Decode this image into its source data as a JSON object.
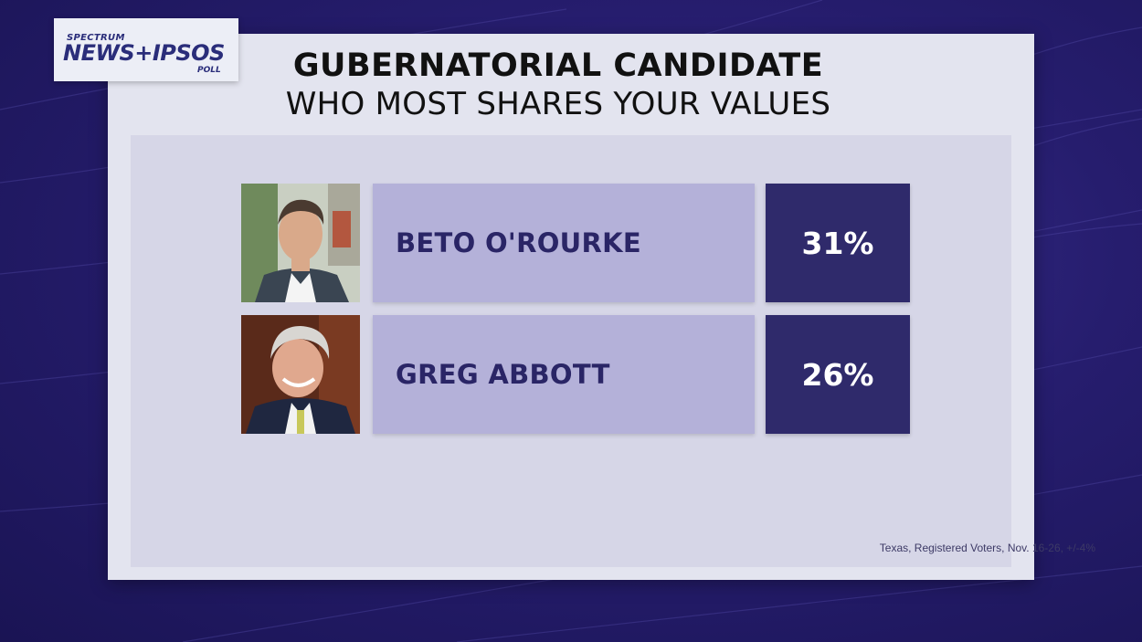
{
  "logo": {
    "line1": "SPECTRUM",
    "line2": "NEWS+IPSOS",
    "line3": "POLL"
  },
  "title": {
    "line1": "GUBERNATORIAL CANDIDATE",
    "line2": "WHO MOST SHARES YOUR VALUES"
  },
  "candidates": [
    {
      "name": "BETO O'ROURKE",
      "percent": "31%"
    },
    {
      "name": "GREG ABBOTT",
      "percent": "26%"
    }
  ],
  "footnote": "Texas, Registered Voters, Nov. 16-26, +/-4%",
  "colors": {
    "background": "#261d6e",
    "name_box": "#b4b1d9",
    "percent_box": "#2f2a6b",
    "panel": "#e3e4ef"
  }
}
